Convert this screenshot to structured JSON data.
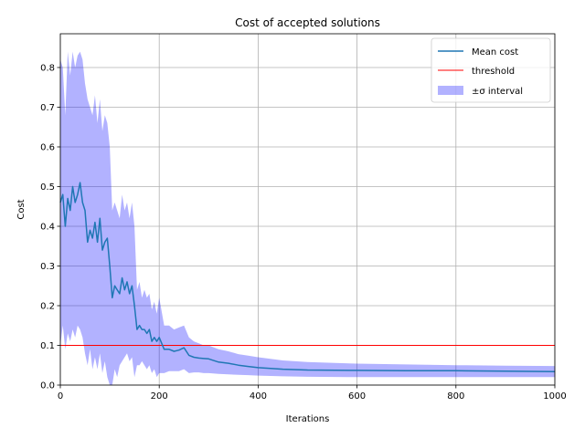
{
  "chart_data": {
    "type": "line",
    "title": "Cost of accepted solutions",
    "xlabel": "Iterations",
    "ylabel": "Cost",
    "xlim": [
      0,
      1000
    ],
    "ylim": [
      0,
      0.885
    ],
    "xticks": [
      0,
      200,
      400,
      600,
      800,
      1000
    ],
    "xtick_labels": [
      "0",
      "200",
      "400",
      "600",
      "800",
      "1000"
    ],
    "yticks": [
      0.0,
      0.1,
      0.2,
      0.3,
      0.4,
      0.5,
      0.6,
      0.7,
      0.8
    ],
    "ytick_labels": [
      "0.0",
      "0.1",
      "0.2",
      "0.3",
      "0.4",
      "0.5",
      "0.6",
      "0.7",
      "0.8"
    ],
    "grid": true,
    "legend_position": "top-right",
    "legend": [
      "Mean cost",
      "threshold",
      "±σ interval"
    ],
    "series": [
      {
        "name": "Mean cost",
        "color": "#1f77b4",
        "x": [
          0,
          5,
          10,
          15,
          20,
          25,
          30,
          35,
          40,
          45,
          50,
          55,
          60,
          65,
          70,
          75,
          80,
          85,
          90,
          95,
          100,
          105,
          110,
          115,
          120,
          125,
          130,
          135,
          140,
          145,
          150,
          155,
          160,
          165,
          170,
          175,
          180,
          185,
          190,
          195,
          200,
          210,
          220,
          230,
          240,
          250,
          260,
          270,
          280,
          290,
          300,
          320,
          340,
          360,
          380,
          400,
          450,
          500,
          600,
          700,
          800,
          900,
          1000
        ],
        "y": [
          0.46,
          0.48,
          0.4,
          0.47,
          0.44,
          0.5,
          0.46,
          0.48,
          0.51,
          0.46,
          0.44,
          0.36,
          0.39,
          0.37,
          0.41,
          0.36,
          0.42,
          0.34,
          0.36,
          0.37,
          0.3,
          0.22,
          0.25,
          0.24,
          0.23,
          0.27,
          0.24,
          0.26,
          0.23,
          0.25,
          0.2,
          0.14,
          0.15,
          0.14,
          0.14,
          0.13,
          0.14,
          0.11,
          0.12,
          0.11,
          0.12,
          0.09,
          0.09,
          0.085,
          0.088,
          0.094,
          0.075,
          0.07,
          0.068,
          0.067,
          0.066,
          0.058,
          0.055,
          0.05,
          0.047,
          0.044,
          0.04,
          0.038,
          0.037,
          0.036,
          0.036,
          0.035,
          0.034
        ]
      },
      {
        "name": "threshold",
        "color": "#ff0000",
        "x": [
          0,
          1000
        ],
        "y": [
          0.1,
          0.1
        ]
      },
      {
        "name": "±σ interval",
        "color": "#0000ff",
        "x": [
          0,
          5,
          10,
          15,
          20,
          25,
          30,
          35,
          40,
          45,
          50,
          55,
          60,
          65,
          70,
          75,
          80,
          85,
          90,
          95,
          100,
          105,
          110,
          115,
          120,
          125,
          130,
          135,
          140,
          145,
          150,
          155,
          160,
          165,
          170,
          175,
          180,
          185,
          190,
          195,
          200,
          210,
          220,
          230,
          240,
          250,
          260,
          270,
          280,
          290,
          300,
          320,
          340,
          360,
          380,
          400,
          450,
          500,
          600,
          700,
          800,
          900,
          1000
        ],
        "lower": [
          0.1,
          0.15,
          0.09,
          0.13,
          0.11,
          0.14,
          0.12,
          0.15,
          0.14,
          0.12,
          0.08,
          0.05,
          0.09,
          0.04,
          0.07,
          0.04,
          0.08,
          0.03,
          0.06,
          0.02,
          0.0,
          0.0,
          0.04,
          0.02,
          0.05,
          0.06,
          0.07,
          0.08,
          0.06,
          0.07,
          0.02,
          0.05,
          0.05,
          0.06,
          0.05,
          0.04,
          0.05,
          0.03,
          0.04,
          0.02,
          0.03,
          0.03,
          0.035,
          0.035,
          0.035,
          0.04,
          0.03,
          0.032,
          0.032,
          0.03,
          0.03,
          0.028,
          0.027,
          0.026,
          0.025,
          0.024,
          0.022,
          0.021,
          0.02,
          0.02,
          0.02,
          0.02,
          0.02
        ],
        "upper": [
          0.82,
          0.8,
          0.68,
          0.84,
          0.78,
          0.84,
          0.8,
          0.83,
          0.84,
          0.82,
          0.76,
          0.72,
          0.7,
          0.68,
          0.73,
          0.66,
          0.72,
          0.64,
          0.68,
          0.66,
          0.6,
          0.44,
          0.46,
          0.44,
          0.42,
          0.48,
          0.44,
          0.46,
          0.42,
          0.46,
          0.4,
          0.24,
          0.26,
          0.22,
          0.24,
          0.22,
          0.23,
          0.19,
          0.21,
          0.18,
          0.22,
          0.15,
          0.15,
          0.14,
          0.145,
          0.15,
          0.12,
          0.11,
          0.105,
          0.1,
          0.1,
          0.09,
          0.085,
          0.078,
          0.074,
          0.07,
          0.062,
          0.058,
          0.054,
          0.052,
          0.05,
          0.049,
          0.048
        ]
      }
    ]
  }
}
